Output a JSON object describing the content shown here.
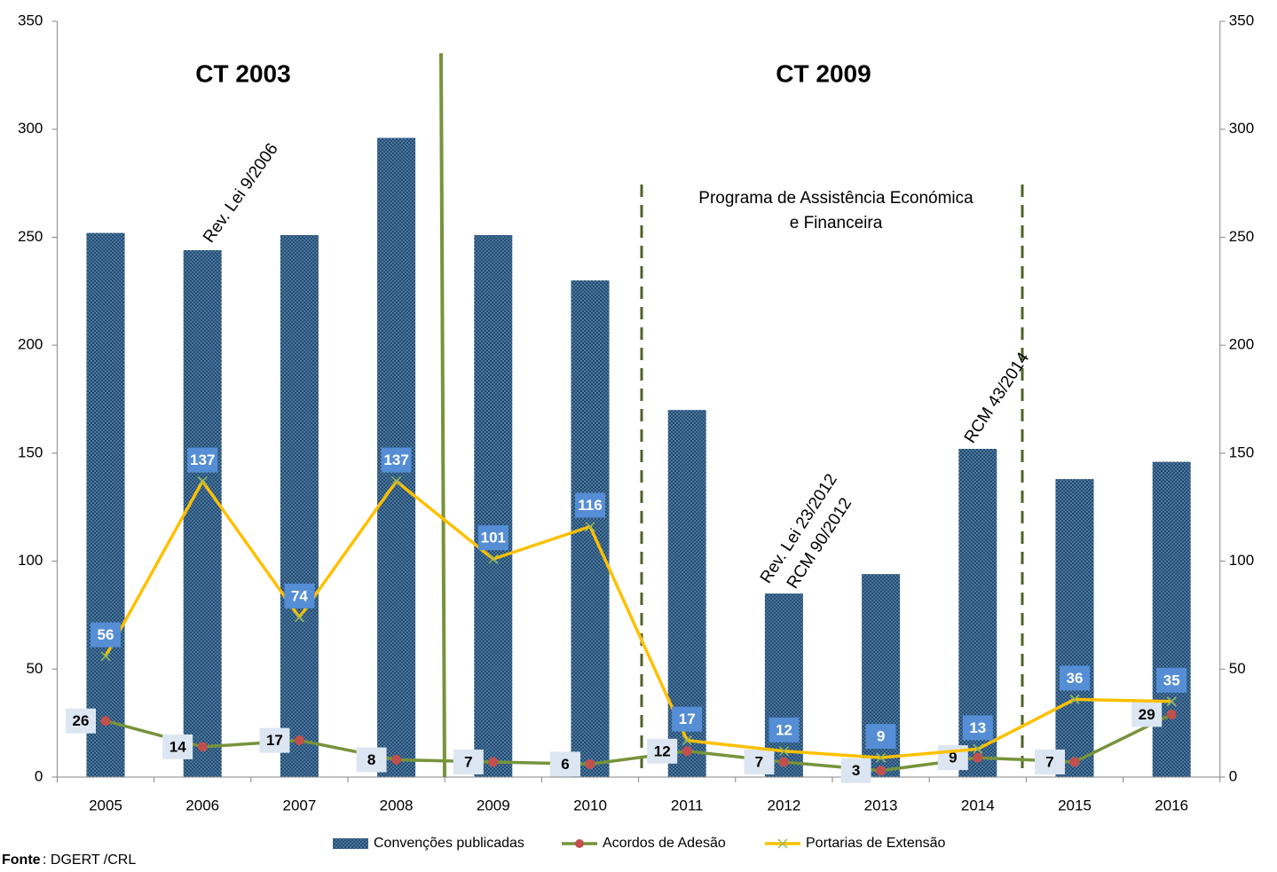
{
  "chart_data": {
    "type": "bar",
    "categories": [
      "2005",
      "2006",
      "2007",
      "2008",
      "2009",
      "2010",
      "2011",
      "2012",
      "2013",
      "2014",
      "2015",
      "2016"
    ],
    "series": [
      {
        "name": "Convenções publicadas",
        "type": "bar",
        "color": "#1f4e79",
        "values": [
          252,
          244,
          251,
          296,
          251,
          230,
          170,
          85,
          94,
          152,
          138,
          146
        ]
      },
      {
        "name": "Acordos de Adesão",
        "type": "line",
        "color": "#77933c",
        "marker_color": "#c0504d",
        "label_color": "#dce6f2",
        "values": [
          26,
          14,
          17,
          8,
          7,
          6,
          12,
          7,
          3,
          9,
          7,
          29
        ]
      },
      {
        "name": "Portarias de Extensão",
        "type": "line",
        "color": "#ffc000",
        "marker_color": "#9bbb59",
        "label_color": "#558ed5",
        "values": [
          56,
          137,
          74,
          137,
          101,
          116,
          17,
          12,
          9,
          13,
          36,
          35
        ]
      }
    ],
    "ylim": [
      0,
      350
    ],
    "yticks": [
      0,
      50,
      100,
      150,
      200,
      250,
      300,
      350
    ],
    "y2lim": [
      0,
      350
    ],
    "y2ticks": [
      0,
      50,
      100,
      150,
      200,
      250,
      300,
      350
    ],
    "grid": false,
    "legend": "bottom",
    "annotations": [
      "CT 2003",
      "CT 2009",
      "Programa de Assistência Económica",
      "e Financeira",
      "Rev. Lei 9/2006",
      "Rev. Lei 23/2012",
      "RCM 90/2012",
      "RCM 43/2014"
    ],
    "source": {
      "label": "Fonte",
      "text": ": DGERT /CRL"
    }
  }
}
